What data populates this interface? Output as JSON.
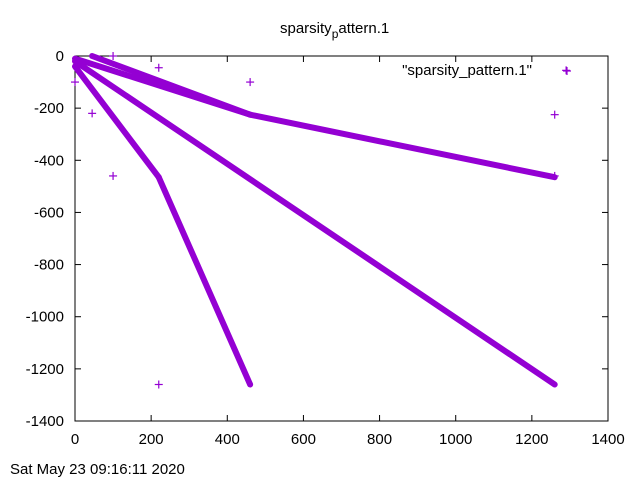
{
  "chart_data": {
    "type": "scatter",
    "title_main": "sparsity",
    "title_sub": "p",
    "title_rest": "attern.1",
    "xlim": [
      0,
      1400
    ],
    "ylim": [
      -1400,
      0
    ],
    "x_ticks": [
      0,
      200,
      400,
      600,
      800,
      1000,
      1200,
      1400
    ],
    "y_ticks": [
      0,
      -200,
      -400,
      -600,
      -800,
      -1000,
      -1200,
      -1400
    ],
    "grid": false,
    "legend_position": "top-right",
    "series": [
      {
        "name": "\"sparsity_pattern.1\"",
        "color": "#9400d3",
        "marker": "plus",
        "segments": [
          {
            "x1": 0,
            "y1": -10,
            "x2": 460,
            "y2": -225
          },
          {
            "x1": 460,
            "y1": -225,
            "x2": 1260,
            "y2": -465
          },
          {
            "x1": 45,
            "y1": 0,
            "x2": 460,
            "y2": -225
          },
          {
            "x1": 0,
            "y1": -20,
            "x2": 1260,
            "y2": -1260
          },
          {
            "x1": 0,
            "y1": -40,
            "x2": 220,
            "y2": -465
          },
          {
            "x1": 220,
            "y1": -465,
            "x2": 460,
            "y2": -1260
          }
        ],
        "points": [
          [
            100,
            0
          ],
          [
            0,
            -100
          ],
          [
            45,
            -220
          ],
          [
            220,
            -45
          ],
          [
            460,
            -100
          ],
          [
            100,
            -460
          ],
          [
            220,
            -1260
          ],
          [
            1260,
            -225
          ],
          [
            1290,
            -55
          ],
          [
            1260,
            -460
          ]
        ]
      }
    ]
  },
  "footer_timestamp": "Sat May 23 09:16:11 2020"
}
